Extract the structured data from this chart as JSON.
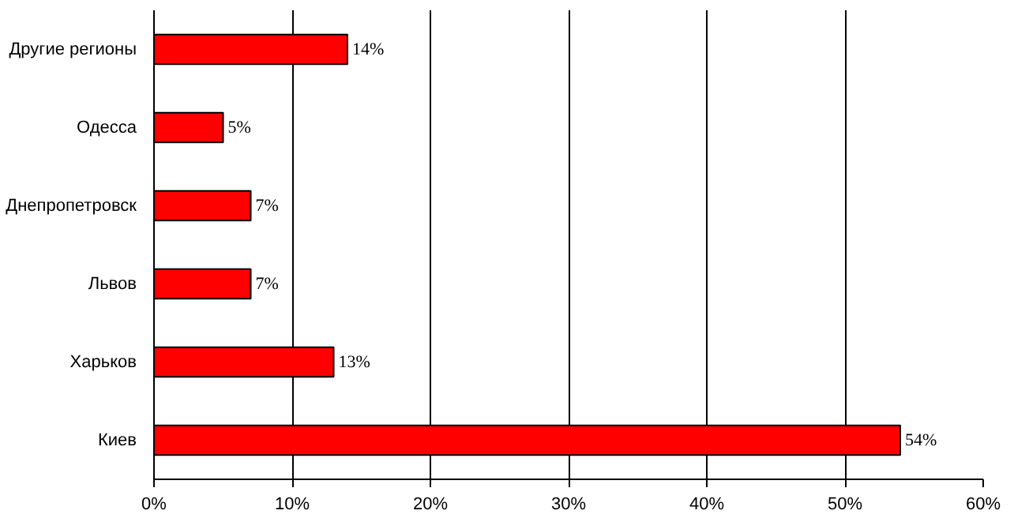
{
  "chart_data": {
    "type": "bar",
    "orientation": "horizontal",
    "categories": [
      "Другие регионы",
      "Одесса",
      "Днепропетровск",
      "Львов",
      "Харьков",
      "Киев"
    ],
    "values": [
      14,
      5,
      7,
      7,
      13,
      54
    ],
    "value_labels": [
      "14%",
      "5%",
      "7%",
      "7%",
      "13%",
      "54%"
    ],
    "color": "#ff0000",
    "xlim": [
      0,
      60
    ],
    "xticks": [
      {
        "value": 0,
        "label": "0%"
      },
      {
        "value": 10,
        "label": "10%"
      },
      {
        "value": 20,
        "label": "20%"
      },
      {
        "value": 30,
        "label": "30%"
      },
      {
        "value": 40,
        "label": "40%"
      },
      {
        "value": 50,
        "label": "50%"
      },
      {
        "value": 60,
        "label": "60%"
      }
    ],
    "grid": "x"
  }
}
